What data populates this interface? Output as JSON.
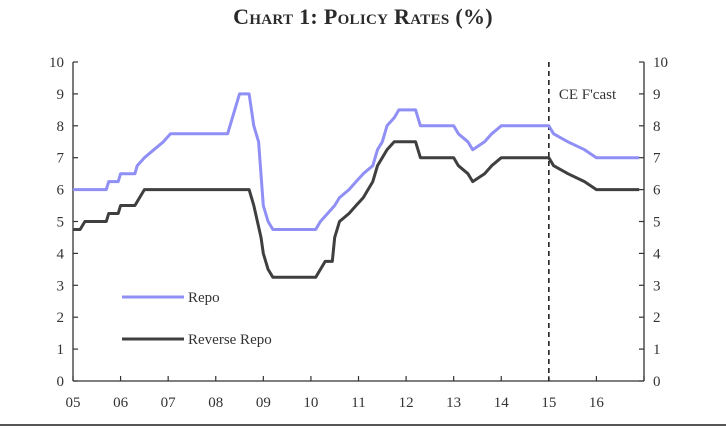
{
  "chart_data": {
    "type": "line",
    "title": "Chart 1: Policy Rates (%)",
    "ylim": [
      0,
      10
    ],
    "y_ticks": [
      "0",
      "1",
      "2",
      "3",
      "4",
      "5",
      "6",
      "7",
      "8",
      "9",
      "10"
    ],
    "xlim": [
      2005.0,
      2017.0
    ],
    "x_ticks": [
      {
        "value": 2005,
        "label": "05"
      },
      {
        "value": 2006,
        "label": "06"
      },
      {
        "value": 2007,
        "label": "07"
      },
      {
        "value": 2008,
        "label": "08"
      },
      {
        "value": 2009,
        "label": "09"
      },
      {
        "value": 2010,
        "label": "10"
      },
      {
        "value": 2011,
        "label": "11"
      },
      {
        "value": 2012,
        "label": "12"
      },
      {
        "value": 2013,
        "label": "13"
      },
      {
        "value": 2014,
        "label": "14"
      },
      {
        "value": 2015,
        "label": "15"
      },
      {
        "value": 2016,
        "label": "16"
      }
    ],
    "forecast_start": 2015.0,
    "forecast_label": "CE F'cast",
    "legend_position": "bottom-left",
    "grid": false,
    "series": [
      {
        "name": "Repo",
        "color": "#8f8ff5",
        "points": [
          [
            2005.0,
            6.0
          ],
          [
            2005.7,
            6.0
          ],
          [
            2005.75,
            6.25
          ],
          [
            2005.95,
            6.25
          ],
          [
            2006.0,
            6.5
          ],
          [
            2006.3,
            6.5
          ],
          [
            2006.35,
            6.75
          ],
          [
            2006.5,
            7.0
          ],
          [
            2006.7,
            7.25
          ],
          [
            2006.9,
            7.5
          ],
          [
            2007.05,
            7.75
          ],
          [
            2008.25,
            7.75
          ],
          [
            2008.3,
            8.0
          ],
          [
            2008.5,
            9.0
          ],
          [
            2008.7,
            9.0
          ],
          [
            2008.8,
            8.0
          ],
          [
            2008.9,
            7.5
          ],
          [
            2009.0,
            5.5
          ],
          [
            2009.1,
            5.0
          ],
          [
            2009.2,
            4.75
          ],
          [
            2010.1,
            4.75
          ],
          [
            2010.2,
            5.0
          ],
          [
            2010.35,
            5.25
          ],
          [
            2010.5,
            5.5
          ],
          [
            2010.6,
            5.75
          ],
          [
            2010.8,
            6.0
          ],
          [
            2010.95,
            6.25
          ],
          [
            2011.1,
            6.5
          ],
          [
            2011.3,
            6.75
          ],
          [
            2011.4,
            7.25
          ],
          [
            2011.5,
            7.5
          ],
          [
            2011.6,
            8.0
          ],
          [
            2011.75,
            8.25
          ],
          [
            2011.85,
            8.5
          ],
          [
            2012.2,
            8.5
          ],
          [
            2012.3,
            8.0
          ],
          [
            2013.0,
            8.0
          ],
          [
            2013.1,
            7.75
          ],
          [
            2013.3,
            7.5
          ],
          [
            2013.4,
            7.25
          ],
          [
            2013.65,
            7.5
          ],
          [
            2013.8,
            7.75
          ],
          [
            2014.0,
            8.0
          ],
          [
            2015.0,
            8.0
          ],
          [
            2015.1,
            7.75
          ],
          [
            2015.4,
            7.5
          ],
          [
            2015.75,
            7.25
          ],
          [
            2016.0,
            7.0
          ],
          [
            2016.9,
            7.0
          ]
        ]
      },
      {
        "name": "Reverse Repo",
        "color": "#3f3f3f",
        "points": [
          [
            2005.0,
            4.75
          ],
          [
            2005.15,
            4.75
          ],
          [
            2005.25,
            5.0
          ],
          [
            2005.7,
            5.0
          ],
          [
            2005.75,
            5.25
          ],
          [
            2005.95,
            5.25
          ],
          [
            2006.0,
            5.5
          ],
          [
            2006.3,
            5.5
          ],
          [
            2006.4,
            5.75
          ],
          [
            2006.5,
            6.0
          ],
          [
            2008.7,
            6.0
          ],
          [
            2008.8,
            5.5
          ],
          [
            2008.95,
            4.5
          ],
          [
            2009.0,
            4.0
          ],
          [
            2009.1,
            3.5
          ],
          [
            2009.2,
            3.25
          ],
          [
            2010.1,
            3.25
          ],
          [
            2010.2,
            3.5
          ],
          [
            2010.3,
            3.75
          ],
          [
            2010.45,
            3.75
          ],
          [
            2010.5,
            4.5
          ],
          [
            2010.6,
            5.0
          ],
          [
            2010.8,
            5.25
          ],
          [
            2010.95,
            5.5
          ],
          [
            2011.1,
            5.75
          ],
          [
            2011.3,
            6.25
          ],
          [
            2011.4,
            6.75
          ],
          [
            2011.5,
            7.0
          ],
          [
            2011.6,
            7.25
          ],
          [
            2011.75,
            7.5
          ],
          [
            2012.2,
            7.5
          ],
          [
            2012.3,
            7.0
          ],
          [
            2013.0,
            7.0
          ],
          [
            2013.1,
            6.75
          ],
          [
            2013.3,
            6.5
          ],
          [
            2013.4,
            6.25
          ],
          [
            2013.65,
            6.5
          ],
          [
            2013.8,
            6.75
          ],
          [
            2014.0,
            7.0
          ],
          [
            2015.0,
            7.0
          ],
          [
            2015.1,
            6.75
          ],
          [
            2015.4,
            6.5
          ],
          [
            2015.75,
            6.25
          ],
          [
            2016.0,
            6.0
          ],
          [
            2016.9,
            6.0
          ]
        ]
      }
    ]
  }
}
